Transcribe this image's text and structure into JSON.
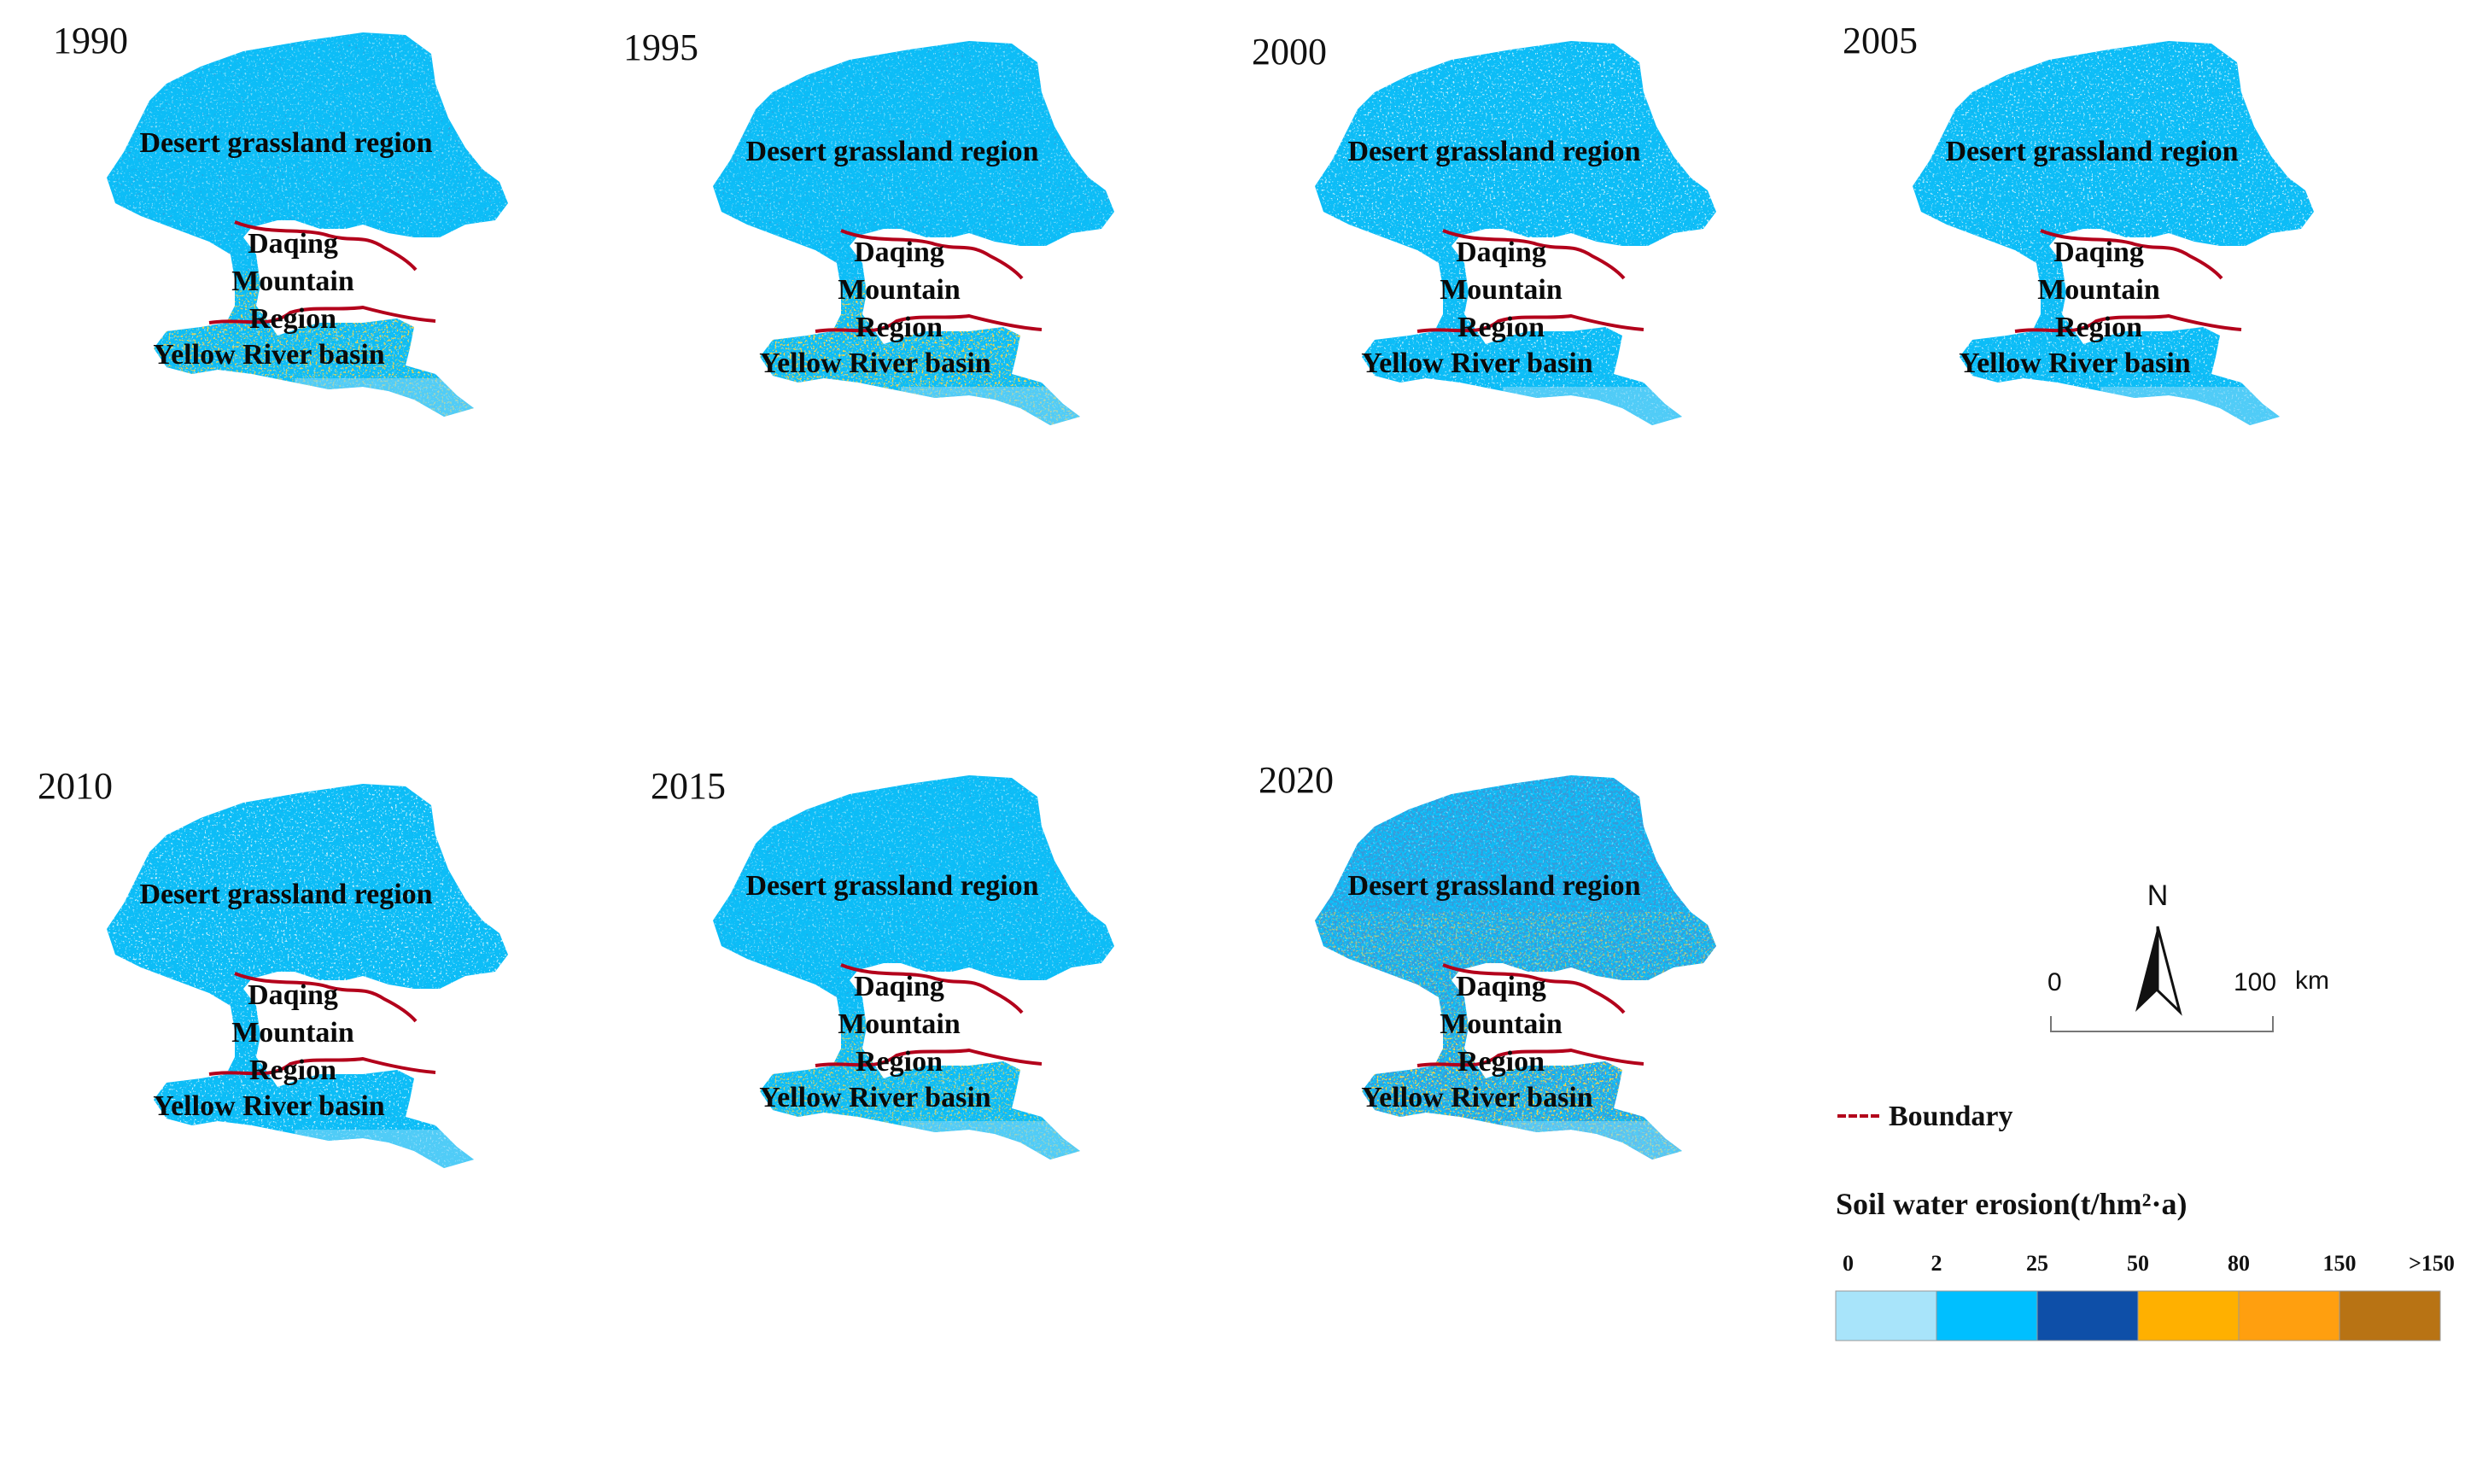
{
  "maps": [
    {
      "year": "1990",
      "erosion_level": "low-north-high-south",
      "labels": {
        "desert": "Desert grassland region",
        "mountain": [
          "Daqing",
          "Mountain",
          "Region"
        ],
        "river": "Yellow River basin"
      }
    },
    {
      "year": "1995",
      "erosion_level": "high-south",
      "labels": {
        "desert": "Desert grassland region",
        "mountain": [
          "Daqing",
          "Mountain",
          "Region"
        ],
        "river": "Yellow River basin"
      }
    },
    {
      "year": "2000",
      "erosion_level": "low",
      "labels": {
        "desert": "Desert grassland region",
        "mountain": [
          "Daqing",
          "Mountain",
          "Region"
        ],
        "river": "Yellow River basin"
      }
    },
    {
      "year": "2005",
      "erosion_level": "low",
      "labels": {
        "desert": "Desert grassland region",
        "mountain": [
          "Daqing",
          "Mountain",
          "Region"
        ],
        "river": "Yellow River basin"
      }
    },
    {
      "year": "2010",
      "erosion_level": "low",
      "labels": {
        "desert": "Desert grassland region",
        "mountain": [
          "Daqing",
          "Mountain",
          "Region"
        ],
        "river": "Yellow River basin"
      }
    },
    {
      "year": "2015",
      "erosion_level": "moderate-south",
      "labels": {
        "desert": "Desert grassland region",
        "mountain": [
          "Daqing",
          "Mountain",
          "Region"
        ],
        "river": "Yellow River basin"
      }
    },
    {
      "year": "2020",
      "erosion_level": "high",
      "labels": {
        "desert": "Desert grassland region",
        "mountain": [
          "Daqing",
          "Mountain",
          "Region"
        ],
        "river": "Yellow River basin"
      }
    }
  ],
  "north_arrow": {
    "label": "N"
  },
  "scale_bar": {
    "start": "0",
    "end": "100",
    "unit": "km"
  },
  "boundary_legend": {
    "label": "Boundary",
    "color": "#b3001b"
  },
  "erosion_legend": {
    "title": "Soil water erosion(t/hm²·a)",
    "breaks": [
      "0",
      "2",
      "25",
      "50",
      "80",
      "150",
      ">150"
    ],
    "colors": [
      "#a8e4fa",
      "#00bfff",
      "#0e4fa8",
      "#ffb000",
      "#ff9f0f",
      "#b87314"
    ]
  }
}
